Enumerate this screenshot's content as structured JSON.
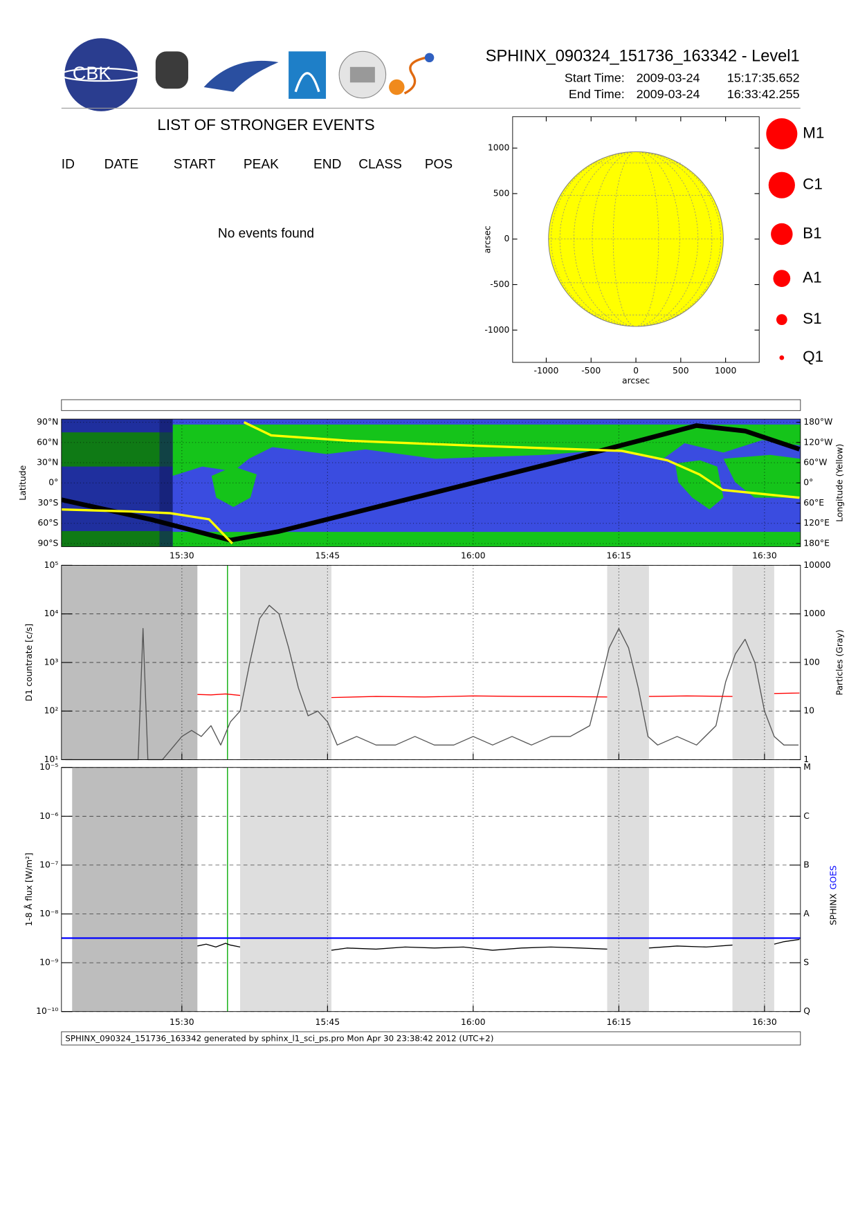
{
  "header": {
    "title": "SPHINX_090324_151736_163342 - Level1",
    "start_label": "Start Time:",
    "start_date": "2009-03-24",
    "start_time": "15:17:35.652",
    "end_label": "End Time:",
    "end_date": "2009-03-24",
    "end_time": "16:33:42.255",
    "logo_text": "CBK"
  },
  "events": {
    "title": "LIST OF STRONGER EVENTS",
    "columns": [
      "ID",
      "DATE",
      "START",
      "PEAK",
      "END",
      "CLASS",
      "POS"
    ],
    "message": "No events found"
  },
  "chart_data": [
    {
      "type": "disk",
      "xlabel": "arcsec",
      "ylabel": "arcsec",
      "xlim": [
        -1375,
        1375
      ],
      "ylim": [
        -1355,
        1345
      ],
      "xticks": [
        -1000,
        -500,
        0,
        500,
        1000
      ],
      "yticks": [
        -1000,
        -500,
        0,
        500,
        1000
      ],
      "disk": {
        "x": 0,
        "y": 0,
        "radius": 975,
        "color": "#ffff00"
      },
      "legend": {
        "entries": [
          "M1",
          "C1",
          "B1",
          "A1",
          "S1",
          "Q1"
        ],
        "color": "#ff0000"
      }
    },
    {
      "type": "map",
      "ylabel": "Latitude",
      "y2label": "Longitude (Yellow)",
      "xlim": [
        917.6,
        993.7
      ],
      "xticks": [
        {
          "value": 930,
          "label": "15:30"
        },
        {
          "value": 945,
          "label": "15:45"
        },
        {
          "value": 960,
          "label": "16:00"
        },
        {
          "value": 975,
          "label": "16:15"
        },
        {
          "value": 990,
          "label": "16:30"
        }
      ],
      "ylim": [
        -94.6,
        94.6
      ],
      "yticks": [
        {
          "value": -90,
          "label": "90°S"
        },
        {
          "value": -60,
          "label": "60°S"
        },
        {
          "value": -30,
          "label": "30°S"
        },
        {
          "value": 0,
          "label": "0°"
        },
        {
          "value": 30,
          "label": "30°N"
        },
        {
          "value": 60,
          "label": "60°N"
        },
        {
          "value": 90,
          "label": "90°N"
        }
      ],
      "y2lim": [
        189.2,
        -189.2
      ],
      "y2ticks": [
        {
          "value": -180,
          "label": "180°W"
        },
        {
          "value": -120,
          "label": "120°W"
        },
        {
          "value": -60,
          "label": "60°W"
        },
        {
          "value": 0,
          "label": "0°"
        },
        {
          "value": 60,
          "label": "60°E"
        },
        {
          "value": 120,
          "label": "120°E"
        },
        {
          "value": 180,
          "label": "180°E"
        }
      ],
      "series": [
        {
          "color": "#000000",
          "x": [
            917.6,
            927,
            935,
            940,
            950,
            960,
            970,
            978,
            983,
            988,
            993.6
          ],
          "values": [
            -25,
            -55,
            -85,
            -72,
            -36,
            0,
            36,
            66,
            85,
            77,
            50
          ]
        },
        {
          "color": "#ffff00",
          "axis": "y2",
          "x": [
            917.6,
            925,
            928.8,
            932.8,
            935.2,
            935.3,
            936.4,
            939.2,
            947.2,
            959.6,
            975.3,
            980,
            983.3,
            985.7,
            993.6
          ],
          "values": [
            79,
            85,
            90,
            108,
            180,
            null,
            -180,
            -141,
            -125,
            -111,
            -95,
            -67,
            -25,
            21,
            44
          ]
        }
      ]
    },
    {
      "type": "line",
      "log": true,
      "ylabel": "D1 countrate [c/s]",
      "y2label": "Particles (Gray)",
      "xlim": [
        917.6,
        993.7
      ],
      "xticks": [
        930,
        945,
        960,
        975,
        990
      ],
      "ylim": [
        10,
        100000
      ],
      "yticks": [
        {
          "value": 10,
          "label": "10¹"
        },
        {
          "value": 100,
          "label": "10²"
        },
        {
          "value": 1000,
          "label": "10³"
        },
        {
          "value": 10000,
          "label": "10⁴"
        },
        {
          "value": 100000,
          "label": "10⁵"
        }
      ],
      "y2lim": [
        1,
        10000
      ],
      "y2ticks": [
        1,
        10,
        100,
        1000,
        10000
      ],
      "shaded": [
        {
          "from": 917.6,
          "to": 931.6,
          "color": "#bdbdbd"
        },
        {
          "from": 936.0,
          "to": 945.4,
          "color": "#dedede"
        },
        {
          "from": 973.8,
          "to": 978.1,
          "color": "#dedede"
        },
        {
          "from": 986.7,
          "to": 991.0,
          "color": "#dedede"
        }
      ],
      "marker_x": 934.7,
      "marker_color": "#00aa00",
      "series": [
        {
          "color": "#555555",
          "axis": "y2",
          "x": [
            918,
            920,
            922,
            924,
            925.5,
            926,
            926.5,
            928,
            930,
            931,
            932,
            933,
            934,
            935,
            936,
            937,
            938,
            939,
            940,
            941,
            942,
            943,
            944,
            945,
            946,
            948,
            950,
            952,
            954,
            956,
            958,
            960,
            962,
            964,
            966,
            968,
            970,
            972,
            973,
            974,
            975,
            976,
            977,
            978,
            979,
            981,
            983,
            985,
            986,
            987,
            988,
            989,
            990,
            991,
            992,
            993.5
          ],
          "values": [
            1,
            1,
            1,
            1,
            1,
            500,
            1,
            1,
            3,
            4,
            3,
            5,
            2,
            6,
            10,
            100,
            800,
            1500,
            1000,
            200,
            30,
            8,
            10,
            6,
            2,
            3,
            2,
            2,
            3,
            2,
            2,
            3,
            2,
            3,
            2,
            3,
            3,
            5,
            30,
            200,
            500,
            200,
            30,
            3,
            2,
            3,
            2,
            5,
            40,
            150,
            300,
            100,
            10,
            3,
            2,
            2
          ]
        },
        {
          "color": "#ff0000",
          "x": [
            931.6,
            933,
            934.5,
            936,
            936.1,
            945.4,
            950,
            955,
            960,
            965,
            970,
            973.8,
            973.9,
            978.1,
            982,
            986.7,
            986.8,
            991,
            993.6
          ],
          "values": [
            220,
            215,
            225,
            210,
            null,
            190,
            200,
            195,
            205,
            200,
            198,
            195,
            null,
            200,
            205,
            200,
            null,
            230,
            235
          ]
        }
      ]
    },
    {
      "type": "line",
      "log": true,
      "ylabel": "1-8 Å flux [W/m²]",
      "xlim": [
        917.6,
        993.7
      ],
      "xticks": [
        {
          "value": 930,
          "label": "15:30"
        },
        {
          "value": 945,
          "label": "15:45"
        },
        {
          "value": 960,
          "label": "16:00"
        },
        {
          "value": 975,
          "label": "16:15"
        },
        {
          "value": 990,
          "label": "16:30"
        }
      ],
      "ylim": [
        1e-10,
        1e-05
      ],
      "yticks": [
        {
          "value": 1e-10,
          "label": "10⁻¹⁰"
        },
        {
          "value": 1e-09,
          "label": "10⁻⁹"
        },
        {
          "value": 1e-08,
          "label": "10⁻⁸"
        },
        {
          "value": 1e-07,
          "label": "10⁻⁷"
        },
        {
          "value": 1e-06,
          "label": "10⁻⁶"
        },
        {
          "value": 1e-05,
          "label": "10⁻⁵"
        }
      ],
      "y2lim": [
        1e-10,
        1e-05
      ],
      "y2ticks": [
        {
          "value": 1e-10,
          "label": "Q"
        },
        {
          "value": 1e-09,
          "label": "S"
        },
        {
          "value": 1e-08,
          "label": "A"
        },
        {
          "value": 1e-07,
          "label": "B"
        },
        {
          "value": 1e-06,
          "label": "C"
        },
        {
          "value": 1e-05,
          "label": "M"
        }
      ],
      "shaded": [
        {
          "from": 918.7,
          "to": 931.6,
          "color": "#bdbdbd"
        },
        {
          "from": 936.0,
          "to": 945.4,
          "color": "#dedede"
        },
        {
          "from": 973.8,
          "to": 978.1,
          "color": "#dedede"
        },
        {
          "from": 986.7,
          "to": 991.0,
          "color": "#dedede"
        }
      ],
      "marker_x": 934.7,
      "marker_color": "#00aa00",
      "series": [
        {
          "name": "SPHINX",
          "color": "#000000",
          "x": [
            931.6,
            932.5,
            933.5,
            934.5,
            935,
            936,
            936.1,
            945.4,
            947,
            950,
            953,
            956,
            959,
            962,
            965,
            968,
            971,
            973.8,
            973.9,
            978.1,
            981,
            984,
            986.7,
            986.8,
            991,
            992,
            993.6
          ],
          "values": [
            2.2e-09,
            2.4e-09,
            2.1e-09,
            2.5e-09,
            2.3e-09,
            2.1e-09,
            null,
            1.8e-09,
            2e-09,
            1.9e-09,
            2.1e-09,
            2e-09,
            2.1e-09,
            1.8e-09,
            2e-09,
            2.1e-09,
            2e-09,
            1.9e-09,
            null,
            2e-09,
            2.2e-09,
            2.1e-09,
            2.3e-09,
            null,
            2.4e-09,
            2.7e-09,
            3e-09
          ]
        },
        {
          "name": "GOES",
          "color": "#0000ff",
          "x": [
            917.6,
            993.7
          ],
          "values": [
            3.2e-09,
            3.2e-09
          ]
        }
      ]
    }
  ],
  "footer": "SPHINX_090324_151736_163342 generated by sphinx_l1_sci_ps.pro Mon Apr 30 23:38:42 2012 (UTC+2)"
}
